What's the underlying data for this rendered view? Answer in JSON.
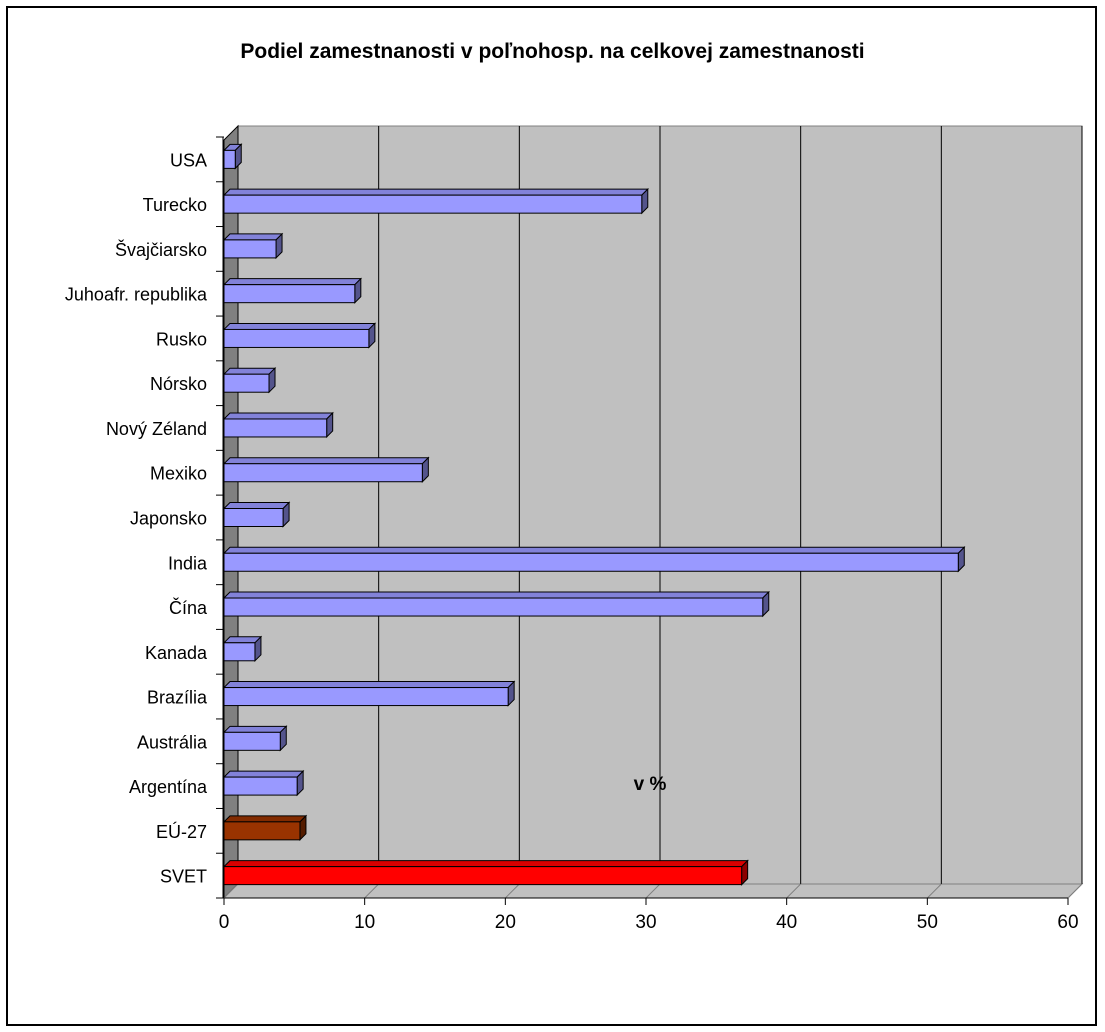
{
  "chart_data": {
    "type": "bar",
    "orientation": "horizontal",
    "three_d": true,
    "title": "Podiel zamestnanosti v poľnohosp. na celkovej zamestnanosti",
    "xlabel": "v %",
    "ylabel": "",
    "xlim": [
      0,
      60
    ],
    "x_ticks": [
      0,
      10,
      20,
      30,
      40,
      50,
      60
    ],
    "grid": true,
    "legend": "none",
    "categories": [
      "USA",
      "Turecko",
      "Švajčiarsko",
      "Juhoafr. republika",
      "Rusko",
      "Nórsko",
      "Nový Zéland",
      "Mexiko",
      "Japonsko",
      "India",
      "Čína",
      "Kanada",
      "Brazília",
      "Austrália",
      "Argentína",
      "EÚ-27",
      "SVET"
    ],
    "values": [
      0.8,
      29.7,
      3.7,
      9.3,
      10.3,
      3.2,
      7.3,
      14.1,
      4.2,
      52.2,
      38.3,
      2.2,
      20.2,
      4.0,
      5.2,
      5.4,
      36.8
    ],
    "bar_colors": [
      "#9999ff",
      "#9999ff",
      "#9999ff",
      "#9999ff",
      "#9999ff",
      "#9999ff",
      "#9999ff",
      "#9999ff",
      "#9999ff",
      "#9999ff",
      "#9999ff",
      "#9999ff",
      "#9999ff",
      "#9999ff",
      "#9999ff",
      "#993300",
      "#ff0000"
    ],
    "colors": {
      "plot_background": "#c0c0c0",
      "side_wall": "#808080",
      "floor": "#c0c0c0",
      "gridline": "#000000"
    }
  }
}
